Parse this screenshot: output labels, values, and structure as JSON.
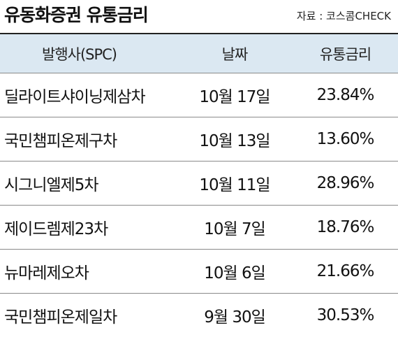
{
  "title": "유동화증권 유통금리",
  "source": "자료 : 코스콤CHECK",
  "table": {
    "headers": [
      "발행사(SPC)",
      "날짜",
      "유통금리"
    ],
    "rows": [
      {
        "issuer": "딜라이트샤이닝제삼차",
        "date": "10월 17일",
        "rate": "23.84%"
      },
      {
        "issuer": "국민챔피온제구차",
        "date": "10월 13일",
        "rate": "13.60%"
      },
      {
        "issuer": "시그니엘제5차",
        "date": "10월 11일",
        "rate": "28.96%"
      },
      {
        "issuer": "제이드렘제23차",
        "date": "10월 7일",
        "rate": "18.76%"
      },
      {
        "issuer": "뉴마레제오차",
        "date": "10월 6일",
        "rate": "21.66%"
      },
      {
        "issuer": "국민챔피온제일차",
        "date": "9월 30일",
        "rate": "30.53%"
      }
    ]
  }
}
